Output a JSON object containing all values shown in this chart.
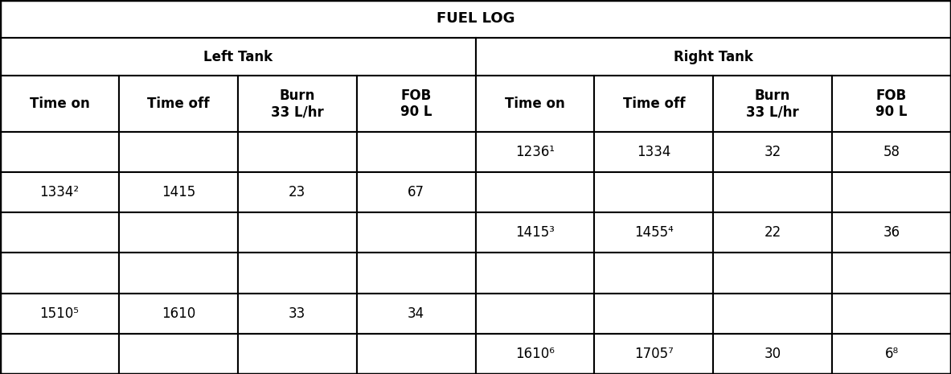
{
  "title": "FUEL LOG",
  "left_tank_label": "Left Tank",
  "right_tank_label": "Right Tank",
  "col_headers": [
    "Time on",
    "Time off",
    "Burn\n33 L/hr",
    "FOB\n90 L",
    "Time on",
    "Time off",
    "Burn\n33 L/hr",
    "FOB\n90 L"
  ],
  "rows": [
    [
      "",
      "",
      "",
      "",
      "1236¹",
      "1334",
      "32",
      "58"
    ],
    [
      "1334²",
      "1415",
      "23",
      "67",
      "",
      "",
      "",
      ""
    ],
    [
      "",
      "",
      "",
      "",
      "1415³",
      "1455⁴",
      "22",
      "36"
    ],
    [
      "",
      "",
      "",
      "",
      "",
      "",
      "",
      ""
    ],
    [
      "1510⁵",
      "1610",
      "33",
      "34",
      "",
      "",
      "",
      ""
    ],
    [
      "",
      "",
      "",
      "",
      "1610⁶",
      "1705⁷",
      "30",
      "6⁸"
    ]
  ],
  "background_color": "#ffffff",
  "line_color": "#000000",
  "title_fontsize": 13,
  "header_fontsize": 12,
  "cell_fontsize": 12,
  "figsize": [
    11.83,
    4.65
  ],
  "dpi": 100
}
